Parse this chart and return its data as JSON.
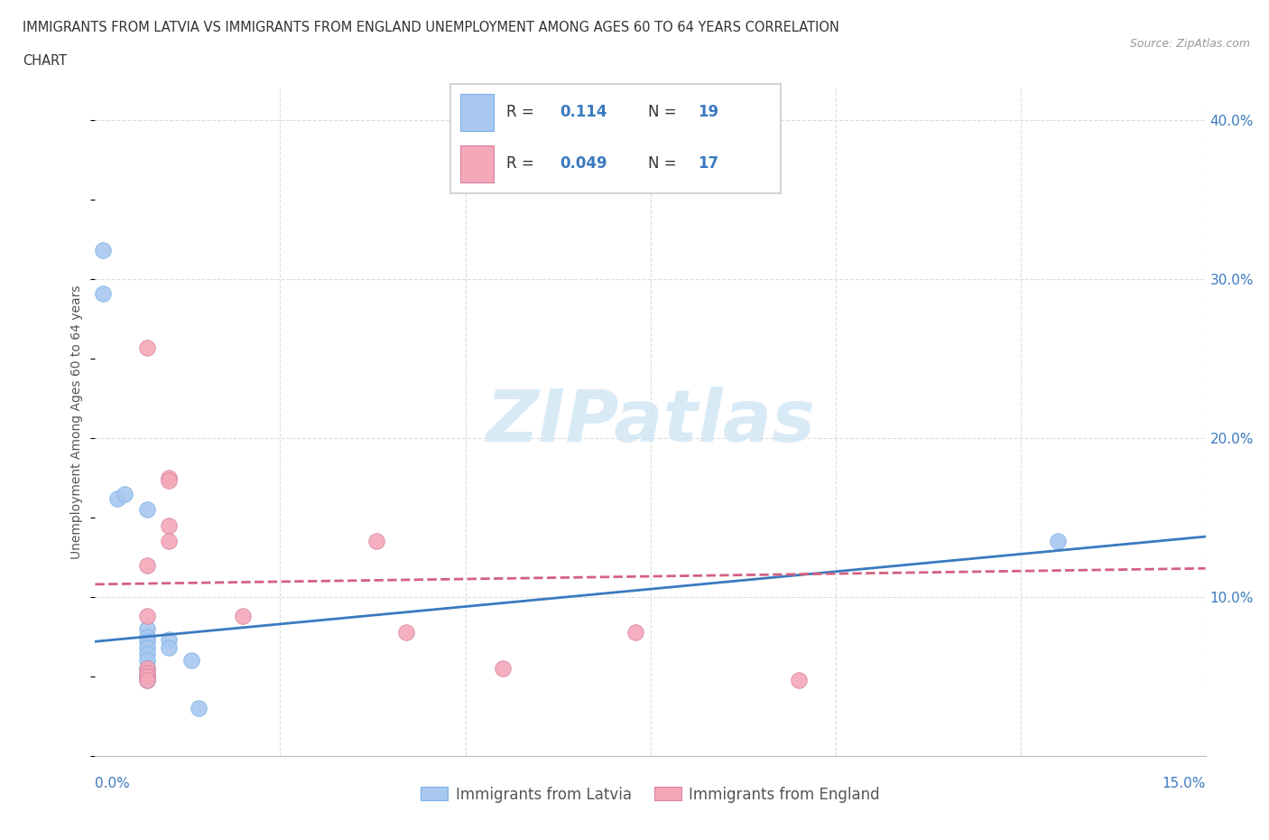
{
  "title_line1": "IMMIGRANTS FROM LATVIA VS IMMIGRANTS FROM ENGLAND UNEMPLOYMENT AMONG AGES 60 TO 64 YEARS CORRELATION",
  "title_line2": "CHART",
  "source": "Source: ZipAtlas.com",
  "ylabel": "Unemployment Among Ages 60 to 64 years",
  "legend_label1": "Immigrants from Latvia",
  "legend_label2": "Immigrants from England",
  "r1": "0.114",
  "n1": "19",
  "r2": "0.049",
  "n2": "17",
  "latvia_color": "#a8c8f0",
  "england_color": "#f4a8b8",
  "xlim": [
    0.0,
    0.15
  ],
  "ylim": [
    0.0,
    0.42
  ],
  "latvia_scatter": [
    [
      0.001,
      0.318
    ],
    [
      0.001,
      0.291
    ],
    [
      0.003,
      0.162
    ],
    [
      0.004,
      0.165
    ],
    [
      0.007,
      0.155
    ],
    [
      0.007,
      0.08
    ],
    [
      0.007,
      0.075
    ],
    [
      0.007,
      0.072
    ],
    [
      0.007,
      0.068
    ],
    [
      0.007,
      0.064
    ],
    [
      0.007,
      0.06
    ],
    [
      0.007,
      0.055
    ],
    [
      0.007,
      0.05
    ],
    [
      0.007,
      0.048
    ],
    [
      0.01,
      0.073
    ],
    [
      0.01,
      0.068
    ],
    [
      0.013,
      0.06
    ],
    [
      0.014,
      0.03
    ],
    [
      0.13,
      0.135
    ]
  ],
  "england_scatter": [
    [
      0.007,
      0.257
    ],
    [
      0.01,
      0.175
    ],
    [
      0.01,
      0.173
    ],
    [
      0.01,
      0.145
    ],
    [
      0.01,
      0.135
    ],
    [
      0.007,
      0.12
    ],
    [
      0.007,
      0.088
    ],
    [
      0.007,
      0.055
    ],
    [
      0.007,
      0.052
    ],
    [
      0.007,
      0.05
    ],
    [
      0.007,
      0.048
    ],
    [
      0.02,
      0.088
    ],
    [
      0.038,
      0.135
    ],
    [
      0.042,
      0.078
    ],
    [
      0.055,
      0.055
    ],
    [
      0.073,
      0.078
    ],
    [
      0.095,
      0.048
    ]
  ],
  "latvia_trend_x": [
    0.0,
    0.15
  ],
  "latvia_trend_y": [
    0.072,
    0.138
  ],
  "england_trend_x": [
    0.0,
    0.15
  ],
  "england_trend_y": [
    0.108,
    0.118
  ],
  "grid_yticks": [
    0.1,
    0.2,
    0.3,
    0.4
  ],
  "grid_xticks": [
    0.025,
    0.05,
    0.075,
    0.1,
    0.125,
    0.15
  ],
  "grid_color": "#dddddd",
  "trend_blue": "#3a7abf",
  "trend_pink": "#d46080",
  "watermark_color": "#cde4f5"
}
